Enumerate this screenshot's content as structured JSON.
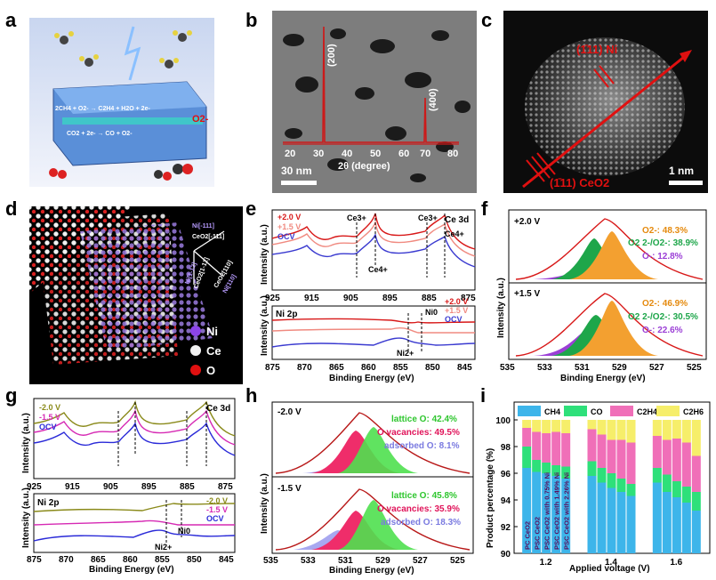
{
  "panels": {
    "a": {
      "label": "a",
      "eq_top": "2CH4 + O2- → C2H4 + H2O + 2e-",
      "eq_bottom": "CO2 + 2e- → CO + O2-",
      "ion": "O2-"
    },
    "b": {
      "label": "b",
      "scale": "30 nm",
      "xlabel": "2θ (degree)",
      "ticks": [
        "20",
        "30",
        "40",
        "50",
        "60",
        "70",
        "80"
      ],
      "peaks": [
        "(200)",
        "(400)"
      ]
    },
    "c": {
      "label": "c",
      "ni_label": "(1̄11) Ni",
      "ceo2_label": "(1̄11) CeO2",
      "scale": "1 nm"
    },
    "d": {
      "label": "d",
      "dir1": "Ni[-111]",
      "dir2": "CeO2[-111]",
      "dir3": "Ni[1-12]",
      "dir4": "CeO2[1-12]",
      "dir5": "Ni[110]",
      "dir6": "CeO2[110]",
      "legend": [
        "Ni",
        "Ce",
        "O"
      ]
    },
    "e": {
      "label": "e",
      "top_title": "Ce 3d",
      "legend": [
        "+2.0 V",
        "+1.5 V",
        "OCV"
      ],
      "bottom_title": "Ni 2p",
      "xlabel": "Binding Energy (eV)",
      "ylabel": "Intensity (a.u.)",
      "ticks_top": [
        "925",
        "915",
        "905",
        "895",
        "885",
        "875"
      ],
      "ticks_bottom": [
        "875",
        "870",
        "865",
        "860",
        "855",
        "850",
        "845"
      ],
      "ce3": "Ce3+",
      "ce4": "Ce4+",
      "ni2": "Ni2+",
      "ni0": "Ni0"
    },
    "f": {
      "label": "f",
      "top_v": "+2.0 V",
      "bottom_v": "+1.5 V",
      "top_vals": [
        "O2-: 48.3%",
        "O2 2-/O2-: 38.9%",
        "O-: 12.8%"
      ],
      "bottom_vals": [
        "O2-: 46.9%",
        "O2 2-/O2-: 30.5%",
        "O-: 22.6%"
      ],
      "xlabel": "Binding Energy (eV)",
      "ylabel": "Intensity (a.u.)",
      "ticks": [
        "535",
        "533",
        "531",
        "529",
        "527",
        "525"
      ]
    },
    "g": {
      "label": "g",
      "top_title": "Ce 3d",
      "legend": [
        "-2.0 V",
        "-1.5 V",
        "OCV"
      ],
      "bottom_title": "Ni 2p",
      "xlabel": "Binding Energy (eV)",
      "ylabel": "Intensity (a.u.)",
      "ticks_top": [
        "925",
        "915",
        "905",
        "895",
        "885",
        "875"
      ],
      "ticks_bottom": [
        "875",
        "870",
        "865",
        "860",
        "855",
        "850",
        "845"
      ]
    },
    "h": {
      "label": "h",
      "top_v": "-2.0 V",
      "bottom_v": "-1.5 V",
      "top_vals": [
        "lattice O: 42.4%",
        "O vacancies: 49.5%",
        "adsorbed O: 8.1%"
      ],
      "bottom_vals": [
        "lattice O: 45.8%",
        "O vacancies: 35.9%",
        "adsorbed O: 18.3%"
      ],
      "xlabel": "Binding Energy (eV)",
      "ylabel": "Intensity (a.u.)",
      "ticks": [
        "535",
        "533",
        "531",
        "529",
        "527",
        "525"
      ]
    },
    "i": {
      "label": "i",
      "ylabel": "Product percentage (%)",
      "xlabel": "Applied voltage (V)",
      "legend": [
        "CH4",
        "CO",
        "C2H4",
        "C2H6"
      ],
      "samples": [
        "PC CeO2",
        "PSC CeO2",
        "PSC CeO2 with 0.75% Ni",
        "PSC CeO2 with 1.49% Ni",
        "PSC CeO2 with 2.26% Ni"
      ]
    }
  },
  "chart_data": {
    "type": "bar",
    "title": "",
    "xlabel": "Applied voltage (V)",
    "ylabel": "Product percentage (%)",
    "ylim": [
      90,
      100
    ],
    "categories": [
      "1.2",
      "1.4",
      "1.6"
    ],
    "series_names": [
      "PC CeO2",
      "PSC CeO2",
      "PSC CeO2 with 0.75% Ni",
      "PSC CeO2 with 1.49% Ni",
      "PSC CeO2 with 2.26% Ni"
    ],
    "stack": [
      "CH4",
      "CO",
      "C2H4",
      "C2H6"
    ],
    "colors": {
      "CH4": "#3db5ea",
      "CO": "#2ee07a",
      "C2H4": "#f06fb8",
      "C2H6": "#f6ee6a"
    },
    "groups": [
      {
        "voltage": "1.2",
        "bars": [
          [
            96.4,
            98.0,
            99.4,
            100
          ],
          [
            96.1,
            97.0,
            99.1,
            100
          ],
          [
            96.0,
            96.8,
            99.0,
            100
          ],
          [
            95.8,
            96.6,
            99.1,
            100
          ],
          [
            95.6,
            96.5,
            99.0,
            100
          ]
        ]
      },
      {
        "voltage": "1.4",
        "bars": [
          [
            95.8,
            96.9,
            99.3,
            100
          ],
          [
            95.3,
            96.4,
            98.9,
            100
          ],
          [
            94.9,
            96.0,
            98.5,
            100
          ],
          [
            94.6,
            95.6,
            98.5,
            100
          ],
          [
            94.3,
            95.2,
            98.3,
            100
          ]
        ]
      },
      {
        "voltage": "1.6",
        "bars": [
          [
            95.3,
            96.4,
            98.8,
            100
          ],
          [
            94.6,
            95.9,
            98.5,
            100
          ],
          [
            94.2,
            95.4,
            98.6,
            100
          ],
          [
            93.8,
            95.0,
            98.3,
            100
          ],
          [
            93.2,
            94.6,
            97.3,
            100
          ]
        ]
      }
    ],
    "yticks": [
      "90",
      "92",
      "94",
      "96",
      "98",
      "100"
    ]
  }
}
